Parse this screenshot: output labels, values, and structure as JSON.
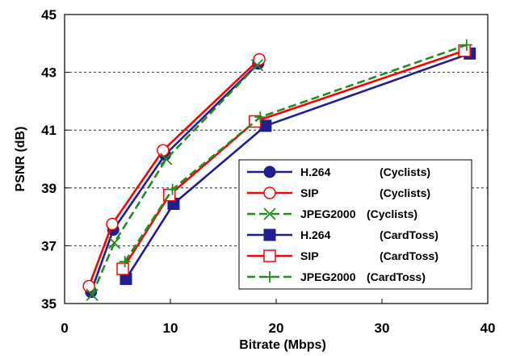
{
  "chart_data": {
    "type": "line",
    "xlabel": "Bitrate (Mbps)",
    "ylabel": "PSNR (dB)",
    "xlim": [
      0,
      40
    ],
    "ylim": [
      35,
      45
    ],
    "xticks": [
      "0",
      "10",
      "20",
      "30",
      "40"
    ],
    "yticks": [
      "35",
      "37",
      "39",
      "41",
      "43",
      "45"
    ],
    "grid": "horizontal dashed",
    "legend_position": "bottom-right",
    "series": [
      {
        "name": "H.264",
        "tag": "(Cyclists)",
        "color": "#1f1f8f",
        "marker": "filled-circle",
        "dash": "solid",
        "x": [
          2.5,
          4.6,
          9.5,
          18.3
        ],
        "y": [
          35.4,
          37.55,
          40.15,
          43.3
        ]
      },
      {
        "name": "SIP",
        "tag": "(Cyclists)",
        "color": "#ff0000",
        "marker": "open-circle",
        "dash": "solid",
        "x": [
          2.3,
          4.5,
          9.3,
          18.4
        ],
        "y": [
          35.6,
          37.75,
          40.3,
          43.45
        ]
      },
      {
        "name": "JPEG2000",
        "tag": "(Cyclists)",
        "color": "#228b22",
        "marker": "x",
        "dash": "dashed",
        "x": [
          2.6,
          4.7,
          9.6,
          18.2
        ],
        "y": [
          35.3,
          37.1,
          40.0,
          43.25
        ]
      },
      {
        "name": "H.264",
        "tag": "(CardToss)",
        "color": "#1f1f8f",
        "marker": "filled-square",
        "dash": "solid",
        "x": [
          5.8,
          10.3,
          19.0,
          38.3
        ],
        "y": [
          35.85,
          38.45,
          41.15,
          43.65
        ]
      },
      {
        "name": "SIP",
        "tag": "(CardToss)",
        "color": "#ff0000",
        "marker": "open-square",
        "dash": "solid",
        "x": [
          5.5,
          9.9,
          18.0,
          37.8
        ],
        "y": [
          36.2,
          38.75,
          41.3,
          43.75
        ]
      },
      {
        "name": "JPEG2000",
        "tag": "(CardToss)",
        "color": "#228b22",
        "marker": "plus",
        "dash": "dashed",
        "x": [
          5.7,
          10.2,
          18.5,
          38.0
        ],
        "y": [
          36.45,
          38.95,
          41.45,
          43.95
        ]
      }
    ]
  }
}
